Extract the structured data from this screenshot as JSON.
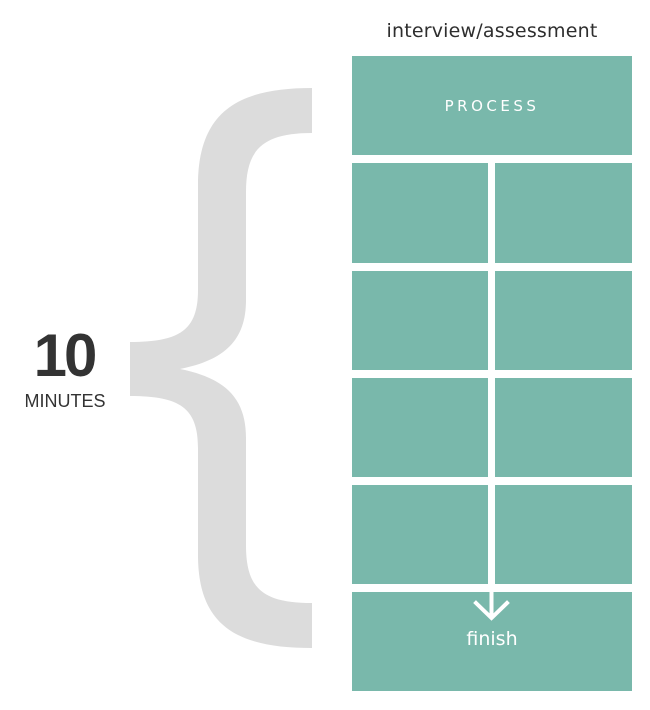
{
  "heading": "interview/assessment",
  "duration": {
    "value": "10",
    "unit": "MINUTES"
  },
  "process": {
    "label": "PROCESS"
  },
  "finish": {
    "label": "finish"
  },
  "colors": {
    "block": "#79b8ab",
    "brace": "#dcdcdc",
    "text": "#333333",
    "line": "#ffffff"
  },
  "icons": {
    "brace": "curly-brace-icon",
    "arrow": "arrow-down-icon"
  }
}
